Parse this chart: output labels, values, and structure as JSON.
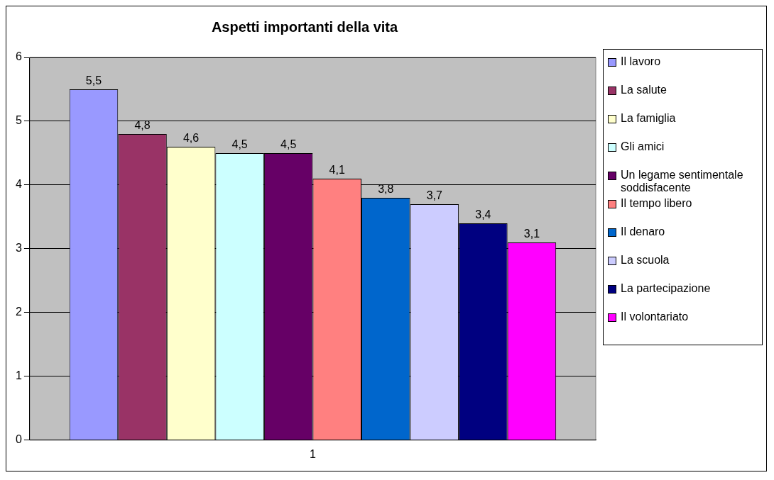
{
  "chart_data": {
    "type": "bar",
    "title": "Aspetti importanti della vita",
    "categories": [
      "1"
    ],
    "series": [
      {
        "name": "Il lavoro",
        "color": "#9999ff",
        "values": [
          5.5
        ],
        "value_labels": [
          "5,5"
        ]
      },
      {
        "name": "La salute",
        "color": "#993366",
        "values": [
          4.8
        ],
        "value_labels": [
          "4,8"
        ]
      },
      {
        "name": "La famiglia",
        "color": "#ffffcc",
        "values": [
          4.6
        ],
        "value_labels": [
          "4,6"
        ]
      },
      {
        "name": "Gli amici",
        "color": "#ccffff",
        "values": [
          4.5
        ],
        "value_labels": [
          "4,5"
        ]
      },
      {
        "name": "Un legame sentimentale soddisfacente",
        "color": "#660066",
        "values": [
          4.5
        ],
        "value_labels": [
          "4,5"
        ]
      },
      {
        "name": "Il tempo libero",
        "color": "#ff8080",
        "values": [
          4.1
        ],
        "value_labels": [
          "4,1"
        ]
      },
      {
        "name": "Il denaro",
        "color": "#0066cc",
        "values": [
          3.8
        ],
        "value_labels": [
          "3,8"
        ]
      },
      {
        "name": "La scuola",
        "color": "#ccccff",
        "values": [
          3.7
        ],
        "value_labels": [
          "3,7"
        ]
      },
      {
        "name": "La partecipazione",
        "color": "#000080",
        "values": [
          3.4
        ],
        "value_labels": [
          "3,4"
        ]
      },
      {
        "name": "Il volontariato",
        "color": "#ff00ff",
        "values": [
          3.1
        ],
        "value_labels": [
          "3,1"
        ]
      }
    ],
    "ylim": [
      0,
      6
    ],
    "yticks": [
      0,
      1,
      2,
      3,
      4,
      5,
      6
    ],
    "grid": "y",
    "legend": "right"
  }
}
